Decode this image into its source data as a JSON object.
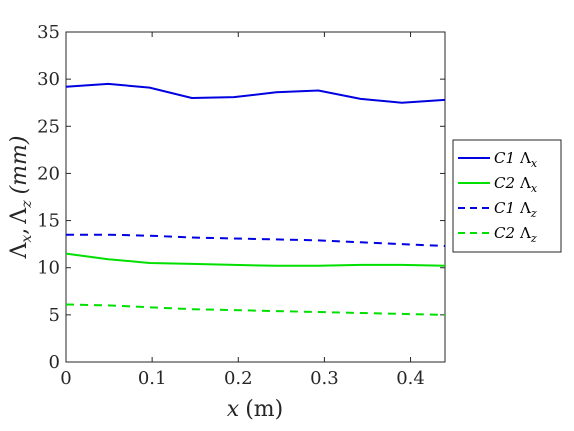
{
  "chart_data": {
    "type": "line",
    "title": "",
    "xlabel": "x (m)",
    "ylabel": "Λx, Λz (mm)",
    "xlim": [
      0,
      0.44
    ],
    "ylim": [
      0,
      35
    ],
    "x_ticks": [
      "0",
      "0.1",
      "0.2",
      "0.3",
      "0.4"
    ],
    "y_ticks": [
      "0",
      "5",
      "10",
      "15",
      "20",
      "25",
      "30",
      "35"
    ],
    "grid": false,
    "legend_position": "right",
    "series": [
      {
        "name": "C1 Λx",
        "color": "#0000e0",
        "dash": "solid",
        "x": [
          0,
          0.049,
          0.097,
          0.146,
          0.195,
          0.244,
          0.293,
          0.342,
          0.39,
          0.44
        ],
        "y": [
          29.2,
          29.5,
          29.1,
          28.0,
          28.1,
          28.6,
          28.8,
          27.9,
          27.5,
          27.8
        ]
      },
      {
        "name": "C2 Λx",
        "color": "#00e000",
        "dash": "solid",
        "x": [
          0,
          0.049,
          0.097,
          0.146,
          0.195,
          0.244,
          0.293,
          0.342,
          0.39,
          0.44
        ],
        "y": [
          11.5,
          10.9,
          10.5,
          10.4,
          10.3,
          10.2,
          10.2,
          10.3,
          10.3,
          10.2
        ]
      },
      {
        "name": "C1 Λz",
        "color": "#0000e0",
        "dash": "dashed",
        "x": [
          0,
          0.049,
          0.097,
          0.146,
          0.195,
          0.244,
          0.293,
          0.342,
          0.39,
          0.44
        ],
        "y": [
          13.5,
          13.5,
          13.4,
          13.2,
          13.1,
          13.0,
          12.9,
          12.7,
          12.5,
          12.3
        ]
      },
      {
        "name": "C2 Λz",
        "color": "#00e000",
        "dash": "dashed",
        "x": [
          0,
          0.049,
          0.097,
          0.146,
          0.195,
          0.244,
          0.293,
          0.342,
          0.39,
          0.44
        ],
        "y": [
          6.1,
          6.0,
          5.8,
          5.6,
          5.5,
          5.4,
          5.3,
          5.2,
          5.1,
          5.0
        ]
      }
    ],
    "legend": {
      "entries": [
        {
          "label": "C1",
          "symbol": "Λ",
          "subscript": "x"
        },
        {
          "label": "C2",
          "symbol": "Λ",
          "subscript": "x"
        },
        {
          "label": "C1",
          "symbol": "Λ",
          "subscript": "z"
        },
        {
          "label": "C2",
          "symbol": "Λ",
          "subscript": "z"
        }
      ]
    },
    "axis_text": {
      "x_var": "x",
      "x_unit": "(m)",
      "y_sym": "Λ",
      "y_sub1": "x",
      "y_sep": ",",
      "y_sub2": "z",
      "y_unit": "(mm)"
    }
  }
}
